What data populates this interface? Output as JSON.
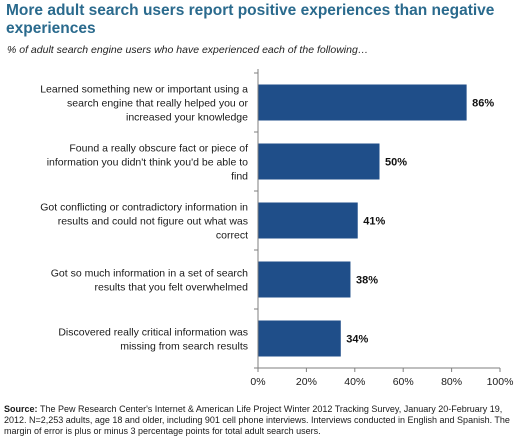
{
  "title": "More adult search users report positive experiences than negative experiences",
  "subtitle": "% of adult search engine users who have experienced each of the following…",
  "source_label": "Source:",
  "source_text": "The Pew Research Center's Internet & American Life Project Winter 2012 Tracking Survey, January 20-February 19, 2012. N=2,253 adults, age 18 and older, including 901 cell phone interviews. Interviews conducted in English and Spanish. The margin of error is plus or minus 3 percentage points for total adult search users.",
  "colors": {
    "bar": "#1f4e89",
    "title": "#2a6a8d"
  },
  "chart_data": {
    "type": "bar",
    "orientation": "horizontal",
    "categories": [
      [
        "Learned something new or important using a",
        "search engine that really helped you or",
        "increased your knowledge"
      ],
      [
        "Found a really obscure fact or piece of",
        "information you didn't think you'd be able to",
        "find"
      ],
      [
        "Got conflicting or contradictory information in",
        "results and could not figure out what was",
        "correct"
      ],
      [
        "Got so much information in a set of search",
        "results that you felt overwhelmed"
      ],
      [
        "Discovered really critical information was",
        "missing from search results"
      ]
    ],
    "values": [
      86,
      50,
      41,
      38,
      34
    ],
    "value_labels": [
      "86%",
      "50%",
      "41%",
      "38%",
      "34%"
    ],
    "xlim": [
      0,
      100
    ],
    "ticks": [
      0,
      20,
      40,
      60,
      80,
      100
    ],
    "tick_labels": [
      "0%",
      "20%",
      "40%",
      "60%",
      "80%",
      "100%"
    ],
    "grid": false
  }
}
